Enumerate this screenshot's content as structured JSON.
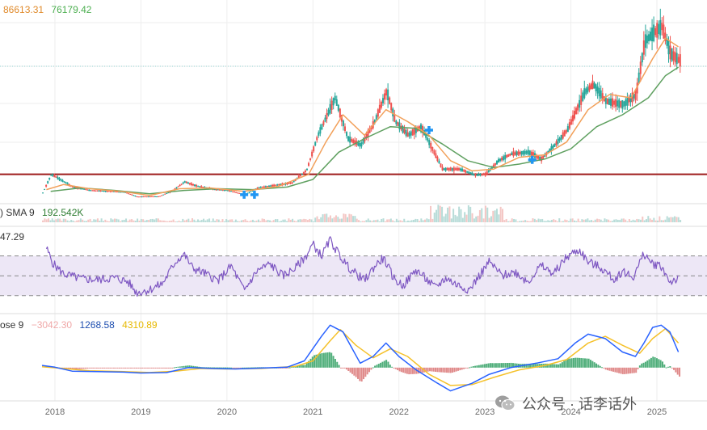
{
  "legend_main": {
    "value_a": "86613.31",
    "value_b": "76179.42"
  },
  "legend_volume": {
    "prefix": ") SMA 9",
    "value": "192.542K"
  },
  "legend_rsi": {
    "value": "47.29"
  },
  "legend_macd": {
    "prefix": "ose 9",
    "hist": "−3042.30",
    "macd": "1268.58",
    "signal": "4310.89"
  },
  "watermark": {
    "text": "公众号 · 话李话外"
  },
  "colors": {
    "up": "#26a69a",
    "down": "#ef5350",
    "sma_fast": "#f2a05a",
    "sma_slow": "#5fa060",
    "level_line": "#9e1b1b",
    "rsi": "#7e57c2",
    "rsi_band": "#ede7f6",
    "macd": "#2962ff",
    "signal": "#f5c12a",
    "legend_a": "#e08a2a",
    "legend_b": "#4caf50",
    "legend_hist": "#f0a8a8",
    "legend_macd": "#1f4fb0",
    "legend_signal": "#e6b800"
  },
  "icons": {
    "marker": "blue-cross-marker",
    "watermark": "wechat-icon"
  },
  "chart_data": {
    "type": "line",
    "x_axis": {
      "tick_labels": [
        "2018",
        "2019",
        "2020",
        "2021",
        "2022",
        "2023",
        "2024",
        "2025"
      ],
      "tick_years": [
        2018,
        2019,
        2020,
        2021,
        2022,
        2023,
        2024,
        2025
      ]
    },
    "price": {
      "series_points": [
        [
          2017.85,
          6000
        ],
        [
          2017.95,
          17000
        ],
        [
          2018.05,
          14000
        ],
        [
          2018.2,
          9500
        ],
        [
          2018.4,
          7500
        ],
        [
          2018.6,
          7000
        ],
        [
          2018.8,
          6500
        ],
        [
          2018.95,
          3800
        ],
        [
          2019.2,
          3900
        ],
        [
          2019.35,
          7000
        ],
        [
          2019.5,
          12500
        ],
        [
          2019.65,
          10000
        ],
        [
          2019.85,
          8000
        ],
        [
          2020.0,
          7500
        ],
        [
          2020.2,
          5000
        ],
        [
          2020.35,
          9000
        ],
        [
          2020.55,
          10500
        ],
        [
          2020.75,
          12000
        ],
        [
          2020.92,
          19500
        ],
        [
          2021.05,
          40000
        ],
        [
          2021.25,
          62000
        ],
        [
          2021.4,
          38000
        ],
        [
          2021.55,
          34000
        ],
        [
          2021.7,
          47000
        ],
        [
          2021.85,
          66000
        ],
        [
          2021.95,
          48000
        ],
        [
          2022.1,
          40000
        ],
        [
          2022.25,
          45000
        ],
        [
          2022.4,
          30000
        ],
        [
          2022.5,
          20000
        ],
        [
          2022.7,
          20000
        ],
        [
          2022.88,
          16500
        ],
        [
          2023.0,
          17000
        ],
        [
          2023.15,
          25000
        ],
        [
          2023.3,
          29000
        ],
        [
          2023.5,
          30000
        ],
        [
          2023.65,
          26000
        ],
        [
          2023.8,
          34000
        ],
        [
          2023.95,
          43000
        ],
        [
          2024.15,
          65000
        ],
        [
          2024.25,
          70000
        ],
        [
          2024.4,
          60000
        ],
        [
          2024.6,
          58000
        ],
        [
          2024.75,
          64000
        ],
        [
          2024.85,
          95000
        ],
        [
          2024.95,
          100000
        ],
        [
          2025.05,
          104000
        ],
        [
          2025.15,
          88000
        ],
        [
          2025.25,
          84000
        ]
      ],
      "sma_fast": [
        [
          2017.9,
          8000
        ],
        [
          2018.1,
          11000
        ],
        [
          2018.4,
          8500
        ],
        [
          2018.8,
          6800
        ],
        [
          2019.1,
          4500
        ],
        [
          2019.45,
          8500
        ],
        [
          2019.8,
          9000
        ],
        [
          2020.2,
          7000
        ],
        [
          2020.6,
          10000
        ],
        [
          2020.95,
          17000
        ],
        [
          2021.15,
          36000
        ],
        [
          2021.35,
          52000
        ],
        [
          2021.6,
          40000
        ],
        [
          2021.85,
          55000
        ],
        [
          2022.1,
          48000
        ],
        [
          2022.35,
          40000
        ],
        [
          2022.6,
          25000
        ],
        [
          2022.85,
          19000
        ],
        [
          2023.1,
          20000
        ],
        [
          2023.4,
          27000
        ],
        [
          2023.7,
          28500
        ],
        [
          2023.95,
          36000
        ],
        [
          2024.2,
          55000
        ],
        [
          2024.45,
          64000
        ],
        [
          2024.7,
          62000
        ],
        [
          2024.95,
          85000
        ],
        [
          2025.1,
          97000
        ],
        [
          2025.25,
          92000
        ]
      ],
      "sma_slow": [
        [
          2017.95,
          7000
        ],
        [
          2018.3,
          9000
        ],
        [
          2018.7,
          7500
        ],
        [
          2019.1,
          5500
        ],
        [
          2019.5,
          7500
        ],
        [
          2019.9,
          8500
        ],
        [
          2020.3,
          8000
        ],
        [
          2020.7,
          9500
        ],
        [
          2021.0,
          14000
        ],
        [
          2021.3,
          30000
        ],
        [
          2021.6,
          38000
        ],
        [
          2021.9,
          45000
        ],
        [
          2022.2,
          44000
        ],
        [
          2022.5,
          35000
        ],
        [
          2022.8,
          25000
        ],
        [
          2023.1,
          21000
        ],
        [
          2023.4,
          23000
        ],
        [
          2023.7,
          26000
        ],
        [
          2024.0,
          32000
        ],
        [
          2024.3,
          45000
        ],
        [
          2024.6,
          52000
        ],
        [
          2024.9,
          62000
        ],
        [
          2025.1,
          75000
        ],
        [
          2025.25,
          80000
        ]
      ],
      "reference_level": 17000,
      "markers": [
        [
          2020.2,
          5000
        ],
        [
          2020.32,
          5000
        ],
        [
          2022.35,
          43000
        ],
        [
          2023.55,
          25500
        ]
      ],
      "ylim": [
        4000,
        110000
      ]
    },
    "volume": {
      "ylim": [
        0,
        10
      ]
    },
    "rsi": {
      "values": [
        [
          2017.9,
          78
        ],
        [
          2017.98,
          62
        ],
        [
          2018.1,
          52
        ],
        [
          2018.3,
          47
        ],
        [
          2018.5,
          46
        ],
        [
          2018.7,
          48
        ],
        [
          2018.85,
          44
        ],
        [
          2018.95,
          33
        ],
        [
          2019.1,
          36
        ],
        [
          2019.25,
          42
        ],
        [
          2019.4,
          64
        ],
        [
          2019.5,
          72
        ],
        [
          2019.6,
          58
        ],
        [
          2019.75,
          52
        ],
        [
          2019.9,
          45
        ],
        [
          2020.05,
          60
        ],
        [
          2020.2,
          35
        ],
        [
          2020.35,
          55
        ],
        [
          2020.5,
          62
        ],
        [
          2020.65,
          50
        ],
        [
          2020.8,
          58
        ],
        [
          2020.92,
          70
        ],
        [
          2021.0,
          82
        ],
        [
          2021.1,
          70
        ],
        [
          2021.2,
          86
        ],
        [
          2021.3,
          72
        ],
        [
          2021.4,
          60
        ],
        [
          2021.5,
          52
        ],
        [
          2021.6,
          45
        ],
        [
          2021.72,
          60
        ],
        [
          2021.82,
          68
        ],
        [
          2021.95,
          46
        ],
        [
          2022.05,
          40
        ],
        [
          2022.2,
          56
        ],
        [
          2022.3,
          48
        ],
        [
          2022.42,
          38
        ],
        [
          2022.55,
          48
        ],
        [
          2022.65,
          42
        ],
        [
          2022.82,
          36
        ],
        [
          2022.95,
          52
        ],
        [
          2023.05,
          64
        ],
        [
          2023.2,
          50
        ],
        [
          2023.35,
          54
        ],
        [
          2023.5,
          44
        ],
        [
          2023.65,
          60
        ],
        [
          2023.8,
          52
        ],
        [
          2023.92,
          66
        ],
        [
          2024.0,
          72
        ],
        [
          2024.1,
          76
        ],
        [
          2024.2,
          64
        ],
        [
          2024.35,
          58
        ],
        [
          2024.5,
          46
        ],
        [
          2024.6,
          55
        ],
        [
          2024.72,
          48
        ],
        [
          2024.85,
          72
        ],
        [
          2024.95,
          62
        ],
        [
          2025.05,
          60
        ],
        [
          2025.15,
          44
        ],
        [
          2025.25,
          47
        ]
      ],
      "bands": [
        30,
        50,
        70
      ],
      "ylim": [
        20,
        95
      ]
    },
    "macd": {
      "macd": [
        [
          2017.85,
          500
        ],
        [
          2018.0,
          100
        ],
        [
          2018.2,
          -800
        ],
        [
          2018.5,
          -900
        ],
        [
          2018.8,
          -1000
        ],
        [
          2019.0,
          -1200
        ],
        [
          2019.3,
          -1100
        ],
        [
          2019.55,
          0
        ],
        [
          2019.85,
          -200
        ],
        [
          2020.1,
          -300
        ],
        [
          2020.4,
          -100
        ],
        [
          2020.7,
          100
        ],
        [
          2020.9,
          1500
        ],
        [
          2021.1,
          7000
        ],
        [
          2021.2,
          9500
        ],
        [
          2021.35,
          8000
        ],
        [
          2021.55,
          1000
        ],
        [
          2021.7,
          2500
        ],
        [
          2021.85,
          5500
        ],
        [
          2022.0,
          2500
        ],
        [
          2022.2,
          -500
        ],
        [
          2022.45,
          -3500
        ],
        [
          2022.6,
          -5200
        ],
        [
          2022.85,
          -3500
        ],
        [
          2023.05,
          -1500
        ],
        [
          2023.3,
          0
        ],
        [
          2023.6,
          1000
        ],
        [
          2023.85,
          2000
        ],
        [
          2024.05,
          5500
        ],
        [
          2024.2,
          7500
        ],
        [
          2024.4,
          6500
        ],
        [
          2024.6,
          3500
        ],
        [
          2024.75,
          2500
        ],
        [
          2024.85,
          5500
        ],
        [
          2024.95,
          9000
        ],
        [
          2025.05,
          9500
        ],
        [
          2025.15,
          8000
        ],
        [
          2025.25,
          3500
        ]
      ],
      "signal": [
        [
          2017.85,
          200
        ],
        [
          2018.1,
          -200
        ],
        [
          2018.4,
          -700
        ],
        [
          2018.8,
          -900
        ],
        [
          2019.1,
          -1100
        ],
        [
          2019.4,
          -800
        ],
        [
          2019.7,
          -200
        ],
        [
          2020.0,
          -300
        ],
        [
          2020.4,
          -200
        ],
        [
          2020.8,
          300
        ],
        [
          2021.0,
          1500
        ],
        [
          2021.2,
          6000
        ],
        [
          2021.32,
          8500
        ],
        [
          2021.5,
          5000
        ],
        [
          2021.7,
          2200
        ],
        [
          2021.9,
          4200
        ],
        [
          2022.1,
          2500
        ],
        [
          2022.35,
          -1500
        ],
        [
          2022.6,
          -4000
        ],
        [
          2022.85,
          -3800
        ],
        [
          2023.1,
          -2200
        ],
        [
          2023.4,
          -500
        ],
        [
          2023.7,
          500
        ],
        [
          2023.95,
          1800
        ],
        [
          2024.2,
          5500
        ],
        [
          2024.4,
          7000
        ],
        [
          2024.6,
          5000
        ],
        [
          2024.8,
          3200
        ],
        [
          2024.95,
          6500
        ],
        [
          2025.1,
          8700
        ],
        [
          2025.25,
          5500
        ]
      ],
      "ylim": [
        -6000,
        11000
      ]
    }
  }
}
